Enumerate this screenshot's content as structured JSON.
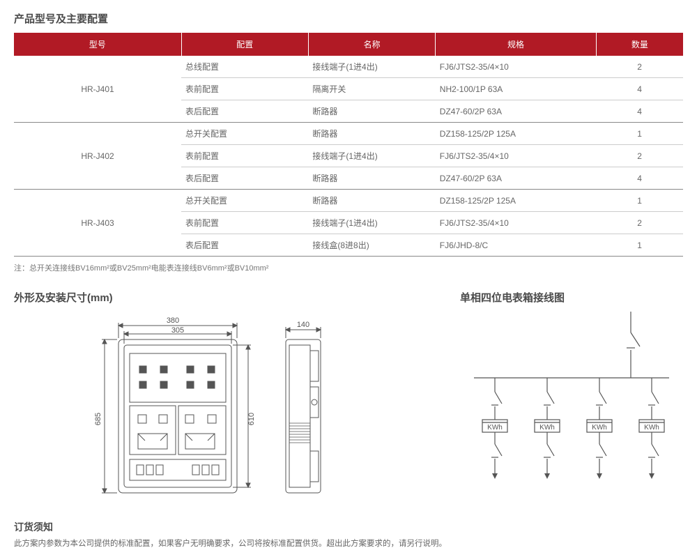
{
  "titles": {
    "spec_table": "产品型号及主要配置",
    "dimensions": "外形及安装尺寸(mm)",
    "wiring": "单相四位电表箱接线图",
    "order": "订货须知"
  },
  "table": {
    "headers": [
      "型号",
      "配置",
      "名称",
      "规格",
      "数量"
    ],
    "groups": [
      {
        "model": "HR-J401",
        "rows": [
          {
            "config": "总线配置",
            "name": "接线端子(1进4出)",
            "spec": "FJ6/JTS2-35/4×10",
            "qty": "2"
          },
          {
            "config": "表前配置",
            "name": "隔离开关",
            "spec": "NH2-100/1P 63A",
            "qty": "4"
          },
          {
            "config": "表后配置",
            "name": "断路器",
            "spec": "DZ47-60/2P  63A",
            "qty": "4"
          }
        ]
      },
      {
        "model": "HR-J402",
        "rows": [
          {
            "config": "总开关配置",
            "name": "断路器",
            "spec": "DZ158-125/2P 125A",
            "qty": "1"
          },
          {
            "config": "表前配置",
            "name": "接线端子(1进4出)",
            "spec": "FJ6/JTS2-35/4×10",
            "qty": "2"
          },
          {
            "config": "表后配置",
            "name": "断路器",
            "spec": "DZ47-60/2P  63A",
            "qty": "4"
          }
        ]
      },
      {
        "model": "HR-J403",
        "rows": [
          {
            "config": "总开关配置",
            "name": "断路器",
            "spec": "DZ158-125/2P 125A",
            "qty": "1"
          },
          {
            "config": "表前配置",
            "name": "接线端子(1进4出)",
            "spec": "FJ6/JTS2-35/4×10",
            "qty": "2"
          },
          {
            "config": "表后配置",
            "name": "接线盒(8进8出)",
            "spec": "FJ6/JHD-8/C",
            "qty": "1"
          }
        ]
      }
    ]
  },
  "note_html": "注：总开关连接线BV16mm²或BV25mm²电能表连接线BV6mm²或BV10mm²",
  "dimensions": {
    "front": {
      "outer_w": "380",
      "inner_w": "305",
      "outer_h": "685",
      "inner_h": "610"
    },
    "side": {
      "depth": "140"
    }
  },
  "wiring_diagram": {
    "meter_label": "KWh",
    "meter_count": 4
  },
  "order_text": "此方案内参数为本公司提供的标准配置，如果客户无明确要求，公司将按标准配置供货。超出此方案要求的，请另行说明。",
  "colors": {
    "header_bg": "#b11a25",
    "header_fg": "#ffffff",
    "text": "#595959",
    "border_light": "#cccccc",
    "border_heavy": "#888888",
    "line": "#555555"
  }
}
